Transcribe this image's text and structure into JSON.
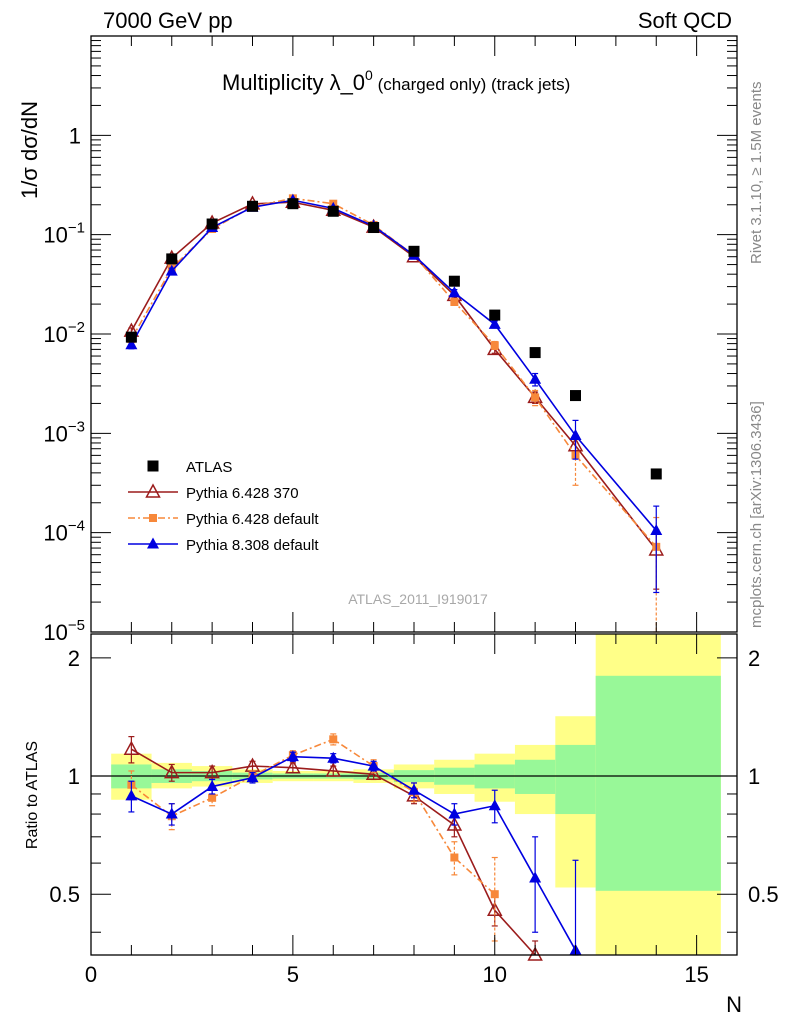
{
  "header": {
    "left": "7000 GeV pp",
    "right": "Soft QCD"
  },
  "side_texts": {
    "top": "Rivet 3.1.10, ≥ 1.5M events",
    "bottom": "mcplots.cern.ch [arXiv:1306.3436]"
  },
  "chart_data": [
    {
      "type": "scatter",
      "title_main": "Multiplicity λ_0",
      "title_sup": "0",
      "title_sub": " (charged only) (track jets)",
      "ylabel": "1/σ dσ/dN",
      "watermark": "ATLAS_2011_I919017",
      "xlim": [
        0,
        16
      ],
      "ylim": [
        1e-05,
        10
      ],
      "yscale": "log",
      "ytick_labels": [
        {
          "value": 1,
          "mantissa": "1",
          "exp": ""
        },
        {
          "value": 0.1,
          "mantissa": "10",
          "exp": "−1"
        },
        {
          "value": 0.01,
          "mantissa": "10",
          "exp": "−2"
        },
        {
          "value": 0.001,
          "mantissa": "10",
          "exp": "−3"
        },
        {
          "value": 0.0001,
          "mantissa": "10",
          "exp": "−4"
        },
        {
          "value": 1e-05,
          "mantissa": "10",
          "exp": "−5"
        }
      ],
      "legend_position": "bottom-left",
      "series": [
        {
          "name": "ATLAS",
          "color": "#000000",
          "marker": "square",
          "x": [
            1,
            2,
            3,
            4,
            5,
            6,
            7,
            8,
            9,
            10,
            11,
            12,
            14
          ],
          "y": [
            0.0093,
            0.057,
            0.128,
            0.193,
            0.205,
            0.172,
            0.118,
            0.068,
            0.034,
            0.0155,
            0.0065,
            0.0024,
            0.00039
          ]
        },
        {
          "name": "Pythia 6.428 370",
          "color": "#9b1c1c",
          "marker": "triangle-open",
          "x": [
            1,
            2,
            3,
            4,
            5,
            6,
            7,
            8,
            9,
            10,
            11,
            12,
            14
          ],
          "y": [
            0.0107,
            0.058,
            0.131,
            0.204,
            0.212,
            0.176,
            0.119,
            0.06,
            0.0245,
            0.007,
            0.0023,
            0.00075,
            6.7e-05
          ],
          "yerr": [
            0.0008,
            0.003,
            0.005,
            0.007,
            0.007,
            0.006,
            0.005,
            0.003,
            0.0015,
            0.0006,
            0.0003,
            0.00015,
            4e-05
          ]
        },
        {
          "name": "Pythia 6.428 default",
          "color": "#f7883a",
          "marker": "square-small",
          "dash": true,
          "x": [
            1,
            2,
            3,
            4,
            5,
            6,
            7,
            8,
            9,
            10,
            11,
            12,
            14
          ],
          "y": [
            0.0089,
            0.046,
            0.114,
            0.192,
            0.232,
            0.205,
            0.125,
            0.062,
            0.021,
            0.0077,
            0.0023,
            0.0006,
            7.2e-05
          ],
          "yerr": [
            0.0007,
            0.003,
            0.005,
            0.007,
            0.008,
            0.007,
            0.005,
            0.003,
            0.0015,
            0.0007,
            0.0004,
            0.0003,
            7e-05
          ]
        },
        {
          "name": "Pythia 8.308 default",
          "color": "#0000e0",
          "marker": "triangle",
          "x": [
            1,
            2,
            3,
            4,
            5,
            6,
            7,
            8,
            9,
            10,
            11,
            12,
            14
          ],
          "y": [
            0.0078,
            0.043,
            0.118,
            0.189,
            0.222,
            0.184,
            0.122,
            0.062,
            0.026,
            0.0125,
            0.0035,
            0.00095,
            0.000105
          ],
          "yerr": [
            0.0007,
            0.003,
            0.005,
            0.007,
            0.007,
            0.006,
            0.005,
            0.003,
            0.002,
            0.001,
            0.0005,
            0.0004,
            8e-05
          ]
        }
      ]
    },
    {
      "type": "scatter",
      "ylabel": "Ratio to ATLAS",
      "xlabel": "N",
      "xlim": [
        0,
        16
      ],
      "ylim": [
        0.35,
        2.3
      ],
      "yscale": "log",
      "xticks": [
        0,
        5,
        10,
        15
      ],
      "yticks": [
        0.5,
        1,
        2
      ],
      "bands": [
        {
          "x0": 0.5,
          "x1": 1.5,
          "green": [
            0.93,
            1.07
          ],
          "yellow": [
            0.87,
            1.14
          ]
        },
        {
          "x0": 1.5,
          "x1": 2.5,
          "green": [
            0.96,
            1.04
          ],
          "yellow": [
            0.93,
            1.08
          ]
        },
        {
          "x0": 2.5,
          "x1": 3.5,
          "green": [
            0.97,
            1.03
          ],
          "yellow": [
            0.94,
            1.06
          ]
        },
        {
          "x0": 3.5,
          "x1": 4.5,
          "green": [
            0.98,
            1.02
          ],
          "yellow": [
            0.96,
            1.04
          ]
        },
        {
          "x0": 4.5,
          "x1": 5.5,
          "green": [
            0.985,
            1.015
          ],
          "yellow": [
            0.97,
            1.03
          ]
        },
        {
          "x0": 5.5,
          "x1": 6.5,
          "green": [
            0.985,
            1.015
          ],
          "yellow": [
            0.97,
            1.03
          ]
        },
        {
          "x0": 6.5,
          "x1": 7.5,
          "green": [
            0.98,
            1.02
          ],
          "yellow": [
            0.96,
            1.04
          ]
        },
        {
          "x0": 7.5,
          "x1": 8.5,
          "green": [
            0.965,
            1.035
          ],
          "yellow": [
            0.93,
            1.07
          ]
        },
        {
          "x0": 8.5,
          "x1": 9.5,
          "green": [
            0.95,
            1.05
          ],
          "yellow": [
            0.9,
            1.1
          ]
        },
        {
          "x0": 9.5,
          "x1": 10.5,
          "green": [
            0.93,
            1.07
          ],
          "yellow": [
            0.86,
            1.14
          ]
        },
        {
          "x0": 10.5,
          "x1": 11.5,
          "green": [
            0.9,
            1.1
          ],
          "yellow": [
            0.8,
            1.2
          ]
        },
        {
          "x0": 11.5,
          "x1": 12.5,
          "green": [
            0.8,
            1.2
          ],
          "yellow": [
            0.52,
            1.42
          ]
        },
        {
          "x0": 12.5,
          "x1": 15.6,
          "green": [
            0.51,
            1.8
          ],
          "yellow": [
            0.2,
            3.5
          ]
        }
      ],
      "series": [
        {
          "name": "Pythia 6.428 370",
          "color": "#9b1c1c",
          "marker": "triangle-open",
          "x": [
            1,
            2,
            3,
            4,
            5,
            6,
            7,
            8,
            9,
            10,
            11
          ],
          "y": [
            1.17,
            1.02,
            1.02,
            1.06,
            1.05,
            1.03,
            1.01,
            0.89,
            0.75,
            0.455,
            0.35
          ],
          "yerr": [
            0.09,
            0.05,
            0.04,
            0.03,
            0.03,
            0.03,
            0.03,
            0.04,
            0.05,
            0.04,
            0.03
          ]
        },
        {
          "name": "Pythia 6.428 default",
          "color": "#f7883a",
          "marker": "square-small",
          "dash": true,
          "x": [
            1,
            2,
            3,
            4,
            5,
            6,
            7,
            8,
            9,
            10
          ],
          "y": [
            0.95,
            0.79,
            0.88,
            1.0,
            1.13,
            1.24,
            1.06,
            0.91,
            0.62,
            0.5
          ],
          "yerr": [
            0.08,
            0.06,
            0.04,
            0.03,
            0.03,
            0.04,
            0.04,
            0.05,
            0.06,
            0.12
          ]
        },
        {
          "name": "Pythia 8.308 default",
          "color": "#0000e0",
          "marker": "triangle",
          "x": [
            1,
            2,
            3,
            4,
            5,
            6,
            7,
            8,
            9,
            10,
            11,
            12
          ],
          "y": [
            0.89,
            0.8,
            0.94,
            0.99,
            1.12,
            1.11,
            1.06,
            0.92,
            0.8,
            0.84,
            0.55,
            0.36
          ],
          "yerr": [
            0.08,
            0.05,
            0.04,
            0.03,
            0.03,
            0.03,
            0.03,
            0.04,
            0.05,
            0.08,
            0.15,
            0.25
          ]
        }
      ]
    }
  ]
}
